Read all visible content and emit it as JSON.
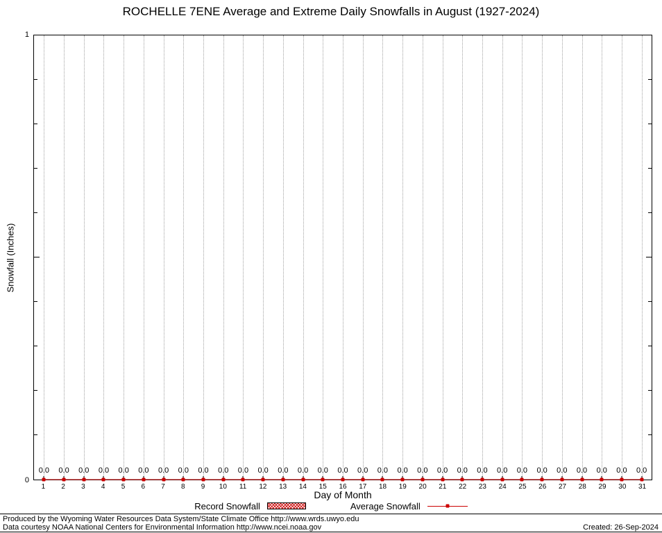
{
  "title": "ROCHELLE 7ENE Average and Extreme Daily Snowfalls in August (1927-2024)",
  "axes": {
    "y_label": "Snowfall (Inches)",
    "y_max_tick": "1",
    "y_min_tick": "0",
    "x_label": "Day of Month"
  },
  "legend": {
    "items": [
      {
        "label": "Record Snowfall",
        "swatch": "red-hatched-box"
      },
      {
        "label": "Average Snowfall",
        "swatch": "red-line-with-point"
      }
    ]
  },
  "footer": {
    "produced_by": "Produced by the Wyoming Water Resources Data System/State Climate Office http://www.wrds.uwyo.edu",
    "data_courtesy": "Data courtesy NOAA National Centers for Environmental Information http://www.ncei.noaa.gov",
    "created": "Created: 26-Sep-2024"
  },
  "colors": {
    "series": "#cc0000",
    "grid": "#a0a0a0",
    "axis": "#000000",
    "background": "#ffffff"
  },
  "chart_data": {
    "type": "line",
    "title": "ROCHELLE 7ENE Average and Extreme Daily Snowfalls in August (1927-2024)",
    "xlabel": "Day of Month",
    "ylabel": "Snowfall (Inches)",
    "ylim": [
      0,
      1
    ],
    "grid": "vertical-dotted",
    "legend_position": "bottom-center",
    "categories": [
      1,
      2,
      3,
      4,
      5,
      6,
      7,
      8,
      9,
      10,
      11,
      12,
      13,
      14,
      15,
      16,
      17,
      18,
      19,
      20,
      21,
      22,
      23,
      24,
      25,
      26,
      27,
      28,
      29,
      30,
      31
    ],
    "series": [
      {
        "name": "Record Snowfall",
        "type": "bar",
        "style": "red-hatched",
        "values": [
          0.0,
          0.0,
          0.0,
          0.0,
          0.0,
          0.0,
          0.0,
          0.0,
          0.0,
          0.0,
          0.0,
          0.0,
          0.0,
          0.0,
          0.0,
          0.0,
          0.0,
          0.0,
          0.0,
          0.0,
          0.0,
          0.0,
          0.0,
          0.0,
          0.0,
          0.0,
          0.0,
          0.0,
          0.0,
          0.0,
          0.0
        ]
      },
      {
        "name": "Average Snowfall",
        "type": "line",
        "color": "#cc0000",
        "values": [
          0.0,
          0.0,
          0.0,
          0.0,
          0.0,
          0.0,
          0.0,
          0.0,
          0.0,
          0.0,
          0.0,
          0.0,
          0.0,
          0.0,
          0.0,
          0.0,
          0.0,
          0.0,
          0.0,
          0.0,
          0.0,
          0.0,
          0.0,
          0.0,
          0.0,
          0.0,
          0.0,
          0.0,
          0.0,
          0.0,
          0.0
        ]
      }
    ],
    "point_labels": [
      "0.0",
      "0.0",
      "0.0",
      "0.0",
      "0.0",
      "0.0",
      "0.0",
      "0.0",
      "0.0",
      "0.0",
      "0.0",
      "0.0",
      "0.0",
      "0.0",
      "0.0",
      "0.0",
      "0.0",
      "0.0",
      "0.0",
      "0.0",
      "0.0",
      "0.0",
      "0.0",
      "0.0",
      "0.0",
      "0.0",
      "0.0",
      "0.0",
      "0.0",
      "0.0",
      "0.0"
    ]
  }
}
